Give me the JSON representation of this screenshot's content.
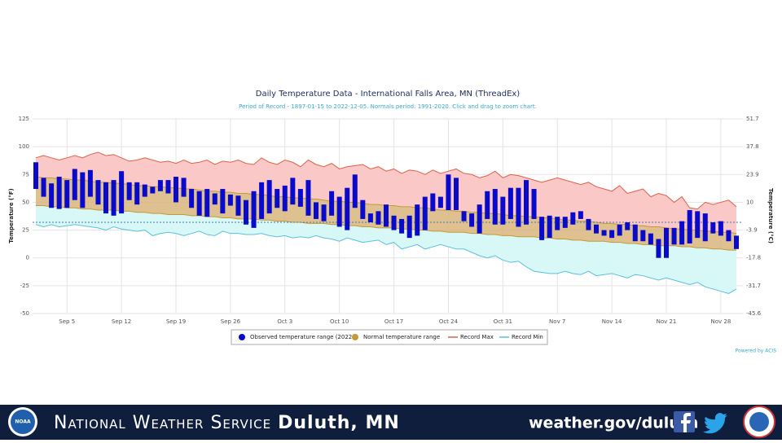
{
  "chart_data": {
    "type": "range",
    "title": "Daily Temperature Data - International Falls Area, MN (ThreadEx)",
    "subtitle": "Period of Record - 1897-01-15 to 2022-12-05. Normals period: 1991-2020. Click and drag to zoom chart.",
    "y_label": "Temperature (°F)",
    "y2_label": "Temperature (°C)",
    "credits": "Powered by ACIS",
    "ylim": [
      -50,
      125
    ],
    "yticks": [
      -50,
      -25,
      0,
      25,
      50,
      75,
      100,
      125
    ],
    "y2lim": [
      -45.6,
      51.7
    ],
    "y2ticks": [
      -45.6,
      -31.7,
      -17.8,
      -3.9,
      10,
      23.9,
      37.8,
      51.7
    ],
    "grid": true,
    "plot_line": 32,
    "legend": "bottom",
    "categories": [
      null,
      null,
      null,
      null,
      "Sep 5",
      null,
      null,
      null,
      null,
      null,
      null,
      "Sep 12",
      null,
      null,
      null,
      null,
      null,
      null,
      "Sep 19",
      null,
      null,
      null,
      null,
      null,
      null,
      "Sep 26",
      null,
      null,
      null,
      null,
      null,
      null,
      "Oct 3",
      null,
      null,
      null,
      null,
      null,
      null,
      "Oct 10",
      null,
      null,
      null,
      null,
      null,
      null,
      "Oct 17",
      null,
      null,
      null,
      null,
      null,
      null,
      "Oct 24",
      null,
      null,
      null,
      null,
      null,
      null,
      "Oct 31",
      null,
      null,
      null,
      null,
      null,
      null,
      "Nov 7",
      null,
      null,
      null,
      null,
      null,
      null,
      "Nov 14",
      null,
      null,
      null,
      null,
      null,
      null,
      "Nov 21",
      null,
      null,
      null,
      null,
      null,
      null,
      "Nov 28",
      null,
      null
    ],
    "series": [
      {
        "name": "Observed temperature range (2022)",
        "kind": "column",
        "color": "#0a0acc",
        "low": [
          62,
          55,
          45,
          44,
          45,
          52,
          45,
          55,
          48,
          40,
          38,
          40,
          52,
          48,
          55,
          58,
          60,
          58,
          50,
          55,
          45,
          38,
          37,
          48,
          40,
          47,
          38,
          30,
          27,
          35,
          40,
          45,
          42,
          48,
          46,
          38,
          35,
          33,
          38,
          28,
          25,
          45,
          35,
          32,
          30,
          28,
          25,
          22,
          18,
          20,
          25,
          42,
          45,
          43,
          43,
          33,
          28,
          22,
          35,
          30,
          30,
          35,
          28,
          30,
          35,
          16,
          18,
          25,
          27,
          30,
          35,
          25,
          22,
          20,
          18,
          20,
          25,
          15,
          15,
          12,
          0,
          0,
          12,
          12,
          13,
          18,
          15,
          22,
          20,
          15,
          8
        ],
        "high": [
          86,
          72,
          67,
          73,
          70,
          80,
          77,
          79,
          70,
          68,
          70,
          78,
          68,
          68,
          66,
          64,
          70,
          70,
          73,
          72,
          62,
          60,
          62,
          58,
          62,
          57,
          56,
          52,
          60,
          68,
          70,
          62,
          65,
          72,
          62,
          70,
          50,
          48,
          60,
          55,
          63,
          75,
          52,
          40,
          42,
          48,
          38,
          35,
          38,
          48,
          55,
          58,
          55,
          75,
          72,
          42,
          40,
          48,
          60,
          62,
          55,
          63,
          63,
          70,
          62,
          37,
          38,
          37,
          37,
          41,
          42,
          35,
          30,
          25,
          25,
          30,
          32,
          30,
          25,
          22,
          17,
          27,
          27,
          33,
          43,
          42,
          40,
          32,
          33,
          25,
          20
        ]
      },
      {
        "name": "Normal temperature range",
        "kind": "area",
        "color": "#c39a35",
        "fill": "#d9b57c",
        "low": [
          47,
          47,
          46,
          46,
          45,
          45,
          44,
          44,
          43,
          43,
          43,
          42,
          42,
          41,
          41,
          40,
          40,
          39,
          39,
          39,
          38,
          38,
          37,
          37,
          36,
          36,
          35,
          35,
          35,
          34,
          34,
          33,
          33,
          32,
          32,
          31,
          31,
          31,
          30,
          30,
          29,
          29,
          28,
          28,
          27,
          27,
          27,
          26,
          26,
          25,
          25,
          24,
          24,
          23,
          23,
          23,
          22,
          22,
          21,
          21,
          20,
          20,
          19,
          19,
          19,
          18,
          18,
          17,
          17,
          16,
          16,
          15,
          15,
          15,
          14,
          14,
          13,
          13,
          12,
          12,
          11,
          11,
          11,
          10,
          10,
          9,
          9,
          8,
          8,
          7,
          7
        ],
        "high": [
          73,
          72,
          72,
          71,
          71,
          70,
          70,
          69,
          68,
          68,
          67,
          67,
          66,
          65,
          65,
          64,
          64,
          63,
          63,
          62,
          62,
          61,
          60,
          60,
          59,
          59,
          58,
          58,
          57,
          57,
          56,
          55,
          55,
          54,
          54,
          53,
          53,
          52,
          51,
          51,
          50,
          50,
          49,
          48,
          48,
          47,
          47,
          46,
          46,
          45,
          45,
          44,
          43,
          43,
          42,
          42,
          41,
          41,
          40,
          40,
          39,
          38,
          38,
          37,
          37,
          36,
          36,
          35,
          34,
          34,
          33,
          33,
          32,
          31,
          31,
          30,
          30,
          29,
          29,
          28,
          28,
          27,
          26,
          26,
          25,
          25,
          24,
          24,
          23,
          23,
          22
        ]
      },
      {
        "name": "Record Max",
        "kind": "line",
        "color": "#d9634a",
        "fill": "#fac8c6",
        "values": [
          90,
          92,
          90,
          88,
          90,
          92,
          90,
          93,
          95,
          92,
          93,
          90,
          87,
          88,
          90,
          88,
          86,
          87,
          85,
          88,
          85,
          86,
          88,
          84,
          87,
          86,
          88,
          85,
          84,
          90,
          86,
          84,
          88,
          86,
          82,
          88,
          84,
          82,
          85,
          80,
          82,
          83,
          84,
          80,
          82,
          78,
          80,
          76,
          79,
          78,
          75,
          79,
          76,
          78,
          80,
          76,
          75,
          72,
          74,
          78,
          72,
          75,
          74,
          72,
          70,
          68,
          70,
          72,
          70,
          68,
          66,
          68,
          64,
          62,
          60,
          65,
          58,
          60,
          62,
          55,
          58,
          56,
          50,
          55,
          45,
          44,
          50,
          48,
          50,
          52,
          46
        ]
      },
      {
        "name": "Record Min",
        "kind": "line",
        "color": "#5bc0d9",
        "fill": "#d8f8f8",
        "values": [
          30,
          28,
          30,
          28,
          29,
          30,
          29,
          28,
          27,
          25,
          28,
          26,
          25,
          24,
          25,
          20,
          22,
          23,
          22,
          20,
          22,
          24,
          21,
          20,
          24,
          22,
          22,
          21,
          21,
          22,
          20,
          19,
          20,
          18,
          19,
          18,
          20,
          18,
          17,
          15,
          18,
          16,
          14,
          15,
          16,
          12,
          14,
          8,
          10,
          12,
          8,
          10,
          12,
          10,
          8,
          8,
          5,
          2,
          0,
          2,
          -2,
          -4,
          -3,
          -8,
          -12,
          -13,
          -14,
          -14,
          -12,
          -14,
          -15,
          -12,
          -16,
          -15,
          -14,
          -16,
          -18,
          -15,
          -16,
          -18,
          -20,
          -18,
          -20,
          -22,
          -24,
          -22,
          -26,
          -28,
          -30,
          -32,
          -28
        ]
      }
    ]
  },
  "footer": {
    "agency": "National Weather Service",
    "office": "Duluth, MN",
    "url": "weather.gov/duluth",
    "noaa": "NOAA"
  }
}
